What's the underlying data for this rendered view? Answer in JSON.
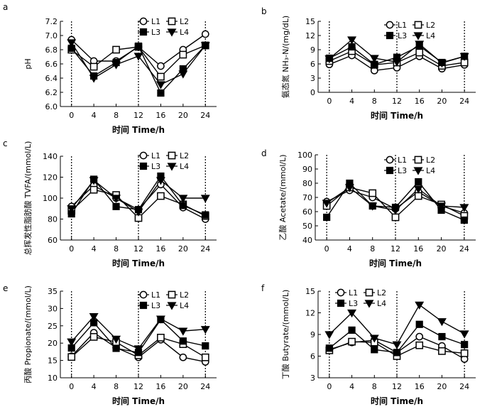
{
  "chart_data": [
    {
      "type": "line",
      "panel_label": "a",
      "xlabel": "时间 Time/h",
      "ylabel": "pH",
      "x": [
        0,
        4,
        8,
        12,
        16,
        20,
        24
      ],
      "xticks": [
        0,
        4,
        8,
        12,
        16,
        20,
        24
      ],
      "ylim": [
        6.0,
        7.2
      ],
      "yticks": [
        "6.0",
        "6.2",
        "6.4",
        "6.6",
        "6.8",
        "7.0",
        "7.2"
      ],
      "series": [
        {
          "name": "L1",
          "marker": "circle-open",
          "values": [
            6.94,
            6.64,
            6.64,
            6.84,
            6.57,
            6.8,
            7.02
          ]
        },
        {
          "name": "L2",
          "marker": "square-open",
          "values": [
            6.8,
            6.56,
            6.8,
            6.84,
            6.42,
            6.73,
            6.86
          ]
        },
        {
          "name": "L3",
          "marker": "square-filled",
          "values": [
            6.82,
            6.43,
            6.62,
            6.85,
            6.19,
            6.53,
            6.86
          ]
        },
        {
          "name": "L4",
          "marker": "triangle-down",
          "values": [
            6.9,
            6.4,
            6.59,
            6.71,
            6.31,
            6.46,
            6.86
          ]
        }
      ],
      "vlines": [
        0,
        12,
        24
      ],
      "legend": "top-right"
    },
    {
      "type": "line",
      "panel_label": "b",
      "xlabel": "时间 Time/h",
      "ylabel": "氨态氮 NH₃-N/(mg/dL)",
      "x": [
        0,
        4,
        8,
        12,
        16,
        20,
        24
      ],
      "xticks": [
        0,
        4,
        8,
        12,
        16,
        20,
        24
      ],
      "ylim": [
        0,
        15
      ],
      "yticks": [
        "0",
        "3",
        "6",
        "9",
        "12",
        "15"
      ],
      "series": [
        {
          "name": "L1",
          "marker": "circle-open",
          "values": [
            5.9,
            7.8,
            4.6,
            5.2,
            7.6,
            5.0,
            5.8
          ]
        },
        {
          "name": "L2",
          "marker": "square-open",
          "values": [
            6.6,
            8.7,
            5.8,
            6.3,
            8.4,
            5.6,
            6.3
          ]
        },
        {
          "name": "L3",
          "marker": "square-filled",
          "values": [
            7.2,
            9.6,
            5.9,
            7.4,
            9.8,
            6.3,
            7.6
          ]
        },
        {
          "name": "L4",
          "marker": "triangle-down",
          "values": [
            7.1,
            11.1,
            7.2,
            6.4,
            10.2,
            6.2,
            7.6
          ]
        }
      ],
      "vlines": [
        0,
        12,
        24
      ],
      "legend": "top-right"
    },
    {
      "type": "line",
      "panel_label": "c",
      "xlabel": "时间 Time/h",
      "ylabel": "总挥发性脂肪酸 TVFA/(mmol/L)",
      "x": [
        0,
        4,
        8,
        12,
        16,
        20,
        24
      ],
      "xticks": [
        0,
        4,
        8,
        12,
        16,
        20,
        24
      ],
      "ylim": [
        60,
        140
      ],
      "yticks": [
        "60",
        "80",
        "100",
        "120",
        "140"
      ],
      "series": [
        {
          "name": "L1",
          "marker": "circle-open",
          "values": [
            92,
            112,
            100,
            89,
            113,
            91,
            80
          ]
        },
        {
          "name": "L2",
          "marker": "square-open",
          "values": [
            88,
            108,
            103,
            81,
            102,
            94,
            83
          ]
        },
        {
          "name": "L3",
          "marker": "square-filled",
          "values": [
            85,
            118,
            92,
            89,
            121,
            93,
            84
          ]
        },
        {
          "name": "L4",
          "marker": "triangle-down",
          "values": [
            90,
            117,
            100,
            87,
            117,
            100,
            100
          ]
        }
      ],
      "vlines": [
        0,
        12,
        24
      ],
      "legend": "top-right"
    },
    {
      "type": "line",
      "panel_label": "d",
      "xlabel": "时间 Time/h",
      "ylabel": "乙酸 Acetate/(mmol/L)",
      "x": [
        0,
        4,
        8,
        12,
        16,
        20,
        24
      ],
      "xticks": [
        0,
        4,
        8,
        12,
        16,
        20,
        24
      ],
      "ylim": [
        40,
        100
      ],
      "yticks": [
        "40",
        "50",
        "60",
        "70",
        "80",
        "90",
        "100"
      ],
      "series": [
        {
          "name": "L1",
          "marker": "circle-open",
          "values": [
            67,
            75,
            70,
            62,
            74,
            64,
            59
          ]
        },
        {
          "name": "L2",
          "marker": "square-open",
          "values": [
            64,
            77,
            73,
            56,
            71,
            65,
            57
          ]
        },
        {
          "name": "L3",
          "marker": "square-filled",
          "values": [
            56,
            80,
            64,
            63,
            81,
            61,
            54
          ]
        },
        {
          "name": "L4",
          "marker": "triangle-down",
          "values": [
            66,
            77,
            64,
            61,
            76,
            64,
            63
          ]
        }
      ],
      "vlines": [
        0,
        12,
        24
      ],
      "legend": "top-right"
    },
    {
      "type": "line",
      "panel_label": "e",
      "xlabel": "时间 Time/h",
      "ylabel": "丙酸 Propionate/(mmol/L)",
      "x": [
        0,
        4,
        8,
        12,
        16,
        20,
        24
      ],
      "xticks": [
        0,
        4,
        8,
        12,
        16,
        20,
        24
      ],
      "ylim": [
        10,
        35
      ],
      "yticks": [
        "10",
        "15",
        "20",
        "25",
        "30",
        "35"
      ],
      "series": [
        {
          "name": "L1",
          "marker": "circle-open",
          "values": [
            16.2,
            23.0,
            18.7,
            15.9,
            21.0,
            15.9,
            14.6
          ]
        },
        {
          "name": "L2",
          "marker": "square-open",
          "values": [
            16.0,
            21.8,
            20.3,
            16.5,
            21.6,
            19.7,
            15.9
          ]
        },
        {
          "name": "L3",
          "marker": "square-filled",
          "values": [
            18.6,
            25.9,
            18.5,
            17.3,
            26.8,
            20.6,
            19.2
          ]
        },
        {
          "name": "L4",
          "marker": "triangle-down",
          "values": [
            20.4,
            27.7,
            21.2,
            18.4,
            27.0,
            23.5,
            24.0
          ]
        }
      ],
      "vlines": [
        0,
        12,
        24
      ],
      "legend": "top-right"
    },
    {
      "type": "line",
      "panel_label": "f",
      "xlabel": "时间 Time/h",
      "ylabel": "丁酸 Butyrate/(mmol/L)",
      "x": [
        0,
        4,
        8,
        12,
        16,
        20,
        24
      ],
      "xticks": [
        0,
        4,
        8,
        12,
        16,
        20,
        24
      ],
      "ylim": [
        3,
        15
      ],
      "yticks": [
        "3",
        "6",
        "9",
        "12",
        "15"
      ],
      "series": [
        {
          "name": "L1",
          "marker": "circle-open",
          "values": [
            6.9,
            7.9,
            8.2,
            6.5,
            8.7,
            7.4,
            5.6
          ]
        },
        {
          "name": "L2",
          "marker": "square-open",
          "values": [
            6.8,
            8.0,
            7.9,
            6.0,
            7.5,
            6.7,
            6.4
          ]
        },
        {
          "name": "L3",
          "marker": "square-filled",
          "values": [
            7.1,
            9.6,
            6.9,
            6.5,
            10.4,
            8.7,
            7.6
          ]
        },
        {
          "name": "L4",
          "marker": "triangle-down",
          "values": [
            9.0,
            12.0,
            8.5,
            7.6,
            13.1,
            10.8,
            9.1
          ]
        }
      ],
      "vlines": [
        0,
        12,
        24
      ],
      "legend": "top-right"
    }
  ]
}
